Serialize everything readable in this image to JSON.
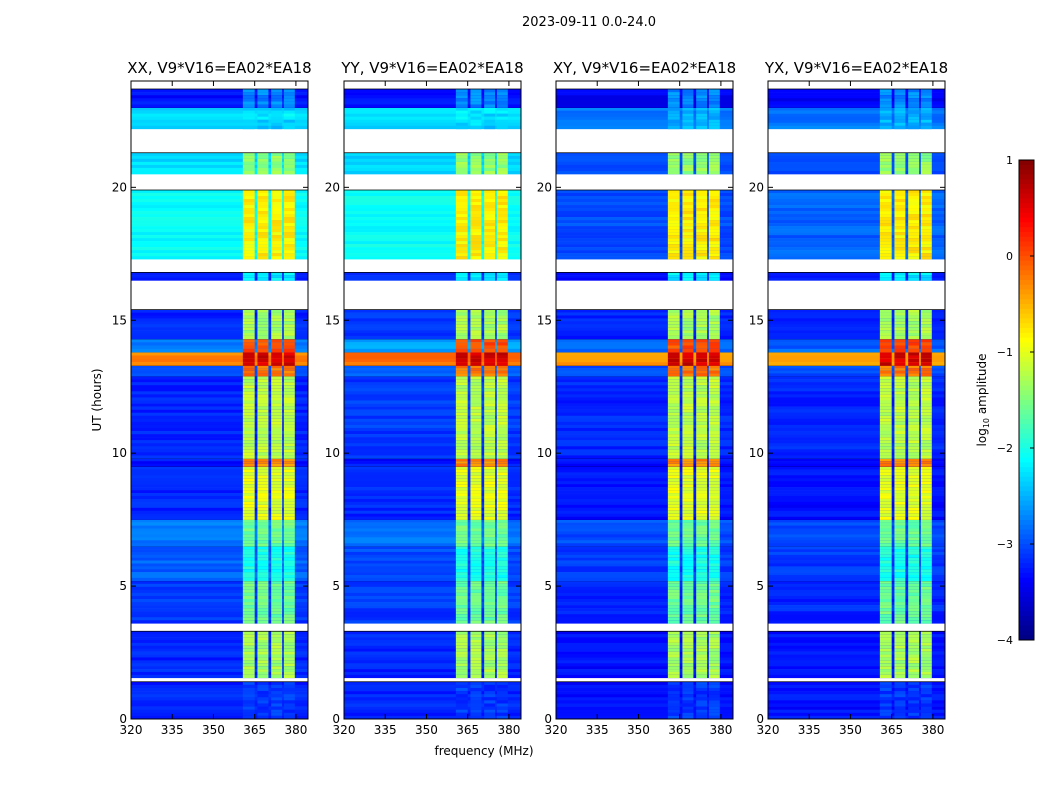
{
  "chart_data": {
    "type": "heatmap",
    "suptitle": "2023-09-11 0.0-24.0",
    "xlabel": "frequency (MHz)",
    "ylabel": "UT (hours)",
    "xlim": [
      320,
      384.4
    ],
    "ylim": [
      0,
      24
    ],
    "xticks": [
      "320",
      "335",
      "350",
      "365",
      "380"
    ],
    "yticks": [
      "0",
      "5",
      "10",
      "15",
      "20"
    ],
    "panels": [
      {
        "title": "XX, V9*V16=EA02*EA18"
      },
      {
        "title": "YY, V9*V16=EA02*EA18"
      },
      {
        "title": "XY, V9*V16=EA02*EA18"
      },
      {
        "title": "YX, V9*V16=EA02*EA18"
      }
    ],
    "rfi_channel_blocks_mhz": [
      [
        360.7,
        365.0
      ],
      [
        366.0,
        370.0
      ],
      [
        371.0,
        375.0
      ],
      [
        375.6,
        379.6
      ]
    ],
    "time_segments": [
      {
        "t": [
          0.0,
          1.4
        ],
        "base": [
          -3.2,
          -3.2,
          -3.3,
          -3.3
        ],
        "rfi": -3.1
      },
      {
        "t": [
          1.55,
          3.3
        ],
        "base": [
          -3.2,
          -3.2,
          -3.3,
          -3.3
        ],
        "rfi": -1.3
      },
      {
        "t": [
          3.6,
          5.2
        ],
        "base": [
          -3.1,
          -3.1,
          -3.2,
          -3.2
        ],
        "rfi": -1.6
      },
      {
        "t": [
          5.2,
          6.5
        ],
        "base": [
          -2.9,
          -3.0,
          -3.1,
          -3.1
        ],
        "rfi": -2.0
      },
      {
        "t": [
          6.5,
          7.5
        ],
        "base": [
          -2.8,
          -2.8,
          -3.0,
          -3.0
        ],
        "rfi": -1.6
      },
      {
        "t": [
          7.5,
          9.5
        ],
        "base": [
          -3.2,
          -3.2,
          -3.3,
          -3.3
        ],
        "rfi": -1.0
      },
      {
        "t": [
          9.5,
          9.8
        ],
        "base": [
          -3.3,
          -3.3,
          -3.3,
          -3.3
        ],
        "rfi": -0.3
      },
      {
        "t": [
          9.8,
          12.9
        ],
        "base": [
          -3.2,
          -3.1,
          -3.2,
          -3.2
        ],
        "rfi": -1.2
      },
      {
        "t": [
          12.9,
          13.3
        ],
        "base": [
          -3.0,
          -2.9,
          -3.0,
          -3.0
        ],
        "rfi": -0.2
      },
      {
        "t": [
          13.3,
          13.8
        ],
        "base": [
          -0.3,
          -0.2,
          -0.4,
          -0.5
        ],
        "rfi": 0.6
      },
      {
        "t": [
          13.8,
          14.3
        ],
        "base": [
          -2.8,
          -2.6,
          -2.9,
          -2.9
        ],
        "rfi": 0.0
      },
      {
        "t": [
          14.3,
          15.4
        ],
        "base": [
          -3.2,
          -3.1,
          -3.2,
          -3.2
        ],
        "rfi": -1.3
      },
      {
        "t": [
          16.5,
          16.8
        ],
        "base": [
          -3.2,
          -3.2,
          -3.3,
          -3.3
        ],
        "rfi": -2.2
      },
      {
        "t": [
          17.3,
          19.9
        ],
        "base": [
          -2.1,
          -2.1,
          -3.0,
          -2.9
        ],
        "rfi": -0.8
      },
      {
        "t": [
          20.5,
          21.3
        ],
        "base": [
          -2.3,
          -2.3,
          -3.0,
          -3.0
        ],
        "rfi": -1.4
      },
      {
        "t": [
          22.2,
          23.0
        ],
        "base": [
          -2.3,
          -2.3,
          -2.8,
          -2.8
        ],
        "rfi": -2.5
      },
      {
        "t": [
          23.0,
          23.7
        ],
        "base": [
          -3.3,
          -3.3,
          -3.4,
          -3.4
        ],
        "rfi": -2.7
      }
    ],
    "colorbar": {
      "label": "log10 amplitude",
      "label_main": "log",
      "label_sub": "10",
      "label_rest": " amplitude",
      "range": [
        -4,
        1
      ],
      "ticks": [
        "1",
        "0",
        "−1",
        "−2",
        "−3",
        "−4"
      ],
      "colormap": "jet"
    }
  }
}
